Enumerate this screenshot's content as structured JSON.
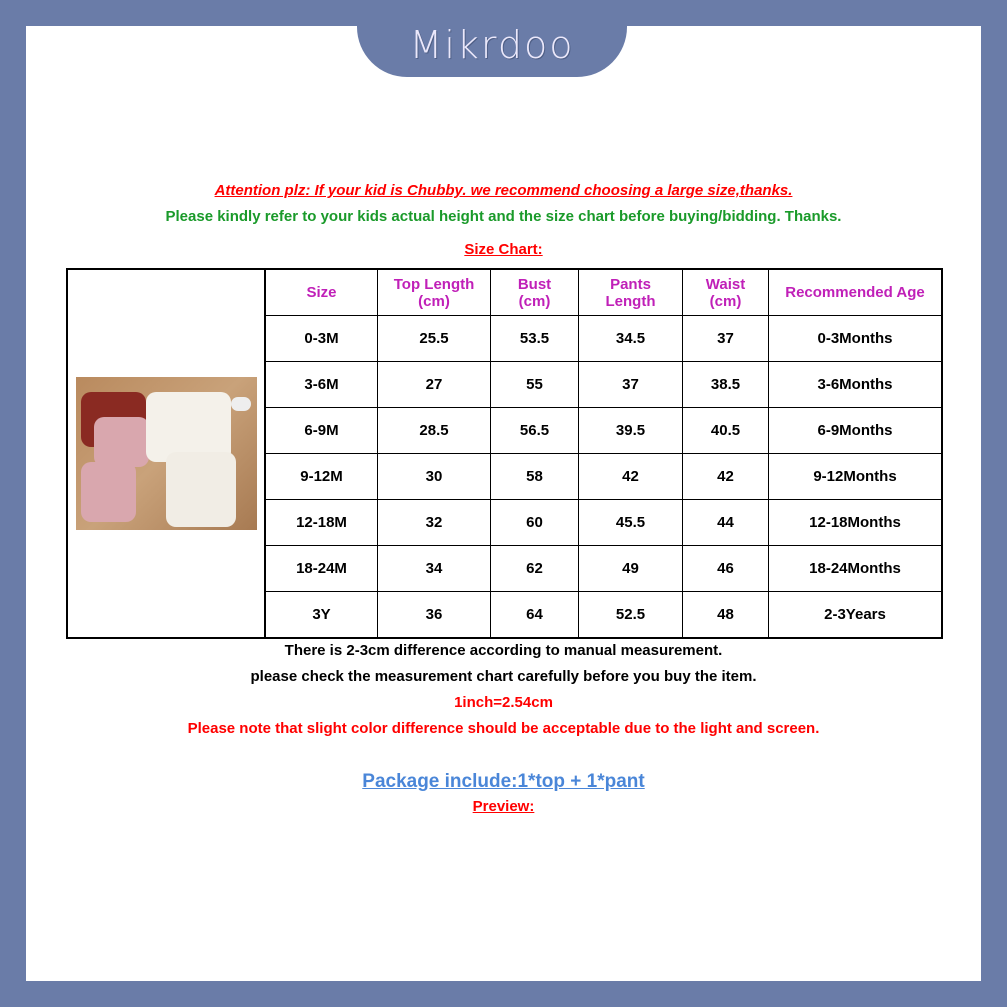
{
  "brand": {
    "logo_text": "Mikrdoo",
    "frame_color": "#6a7ca8"
  },
  "notes": {
    "attention": "Attention plz: If your kid is Chubby. we recommend choosing a large size,thanks.",
    "refer": "Please kindly refer to your kids actual height and the size chart before buying/bidding. Thanks.",
    "size_chart_title": "Size Chart:",
    "difference": "There is 2-3cm difference according to manual measurement.",
    "check": "please check the measurement chart carefully before you buy the item.",
    "inch": "1inch=2.54cm",
    "color_note": "Please note that slight color difference should be acceptable due to the light and screen.",
    "package": "Package include:1*top + 1*pant",
    "preview": "Preview:"
  },
  "table": {
    "headers": [
      [
        "Size"
      ],
      [
        "Top Length",
        "(cm)"
      ],
      [
        "Bust",
        "(cm)"
      ],
      [
        "Pants",
        "Length"
      ],
      [
        "Waist",
        "(cm)"
      ],
      [
        "Recommended Age"
      ]
    ],
    "rows": [
      [
        "0-3M",
        "25.5",
        "53.5",
        "34.5",
        "37",
        "0-3Months"
      ],
      [
        "3-6M",
        "27",
        "55",
        "37",
        "38.5",
        "3-6Months"
      ],
      [
        "6-9M",
        "28.5",
        "56.5",
        "39.5",
        "40.5",
        "6-9Months"
      ],
      [
        "9-12M",
        "30",
        "58",
        "42",
        "42",
        "9-12Months"
      ],
      [
        "12-18M",
        "32",
        "60",
        "45.5",
        "44",
        "12-18Months"
      ],
      [
        "18-24M",
        "34",
        "62",
        "49",
        "46",
        "18-24Months"
      ],
      [
        "3Y",
        "36",
        "64",
        "52.5",
        "48",
        "2-3Years"
      ]
    ]
  }
}
